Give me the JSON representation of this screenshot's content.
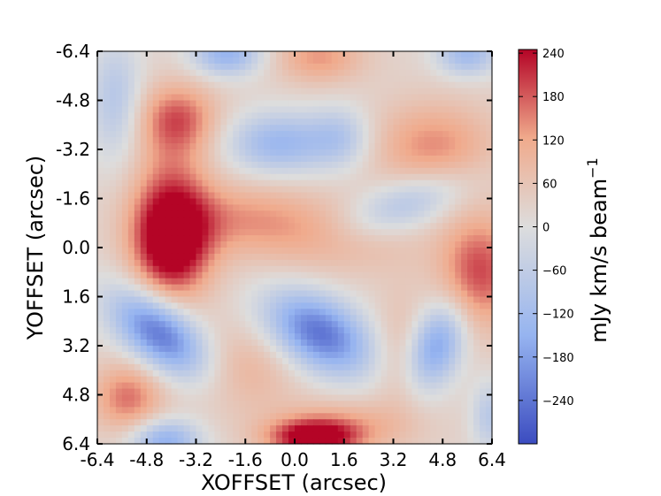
{
  "chart_data": {
    "type": "heatmap",
    "xlabel": "XOFFSET (arcsec)",
    "ylabel": "YOFFSET (arcsec)",
    "xlim": [
      -6.4,
      6.4
    ],
    "ylim": [
      -6.4,
      6.4
    ],
    "y_inverted": true,
    "x_ticks": [
      "-6.4",
      "-4.8",
      "-3.2",
      "-1.6",
      "0.0",
      "1.6",
      "3.2",
      "4.8",
      "6.4"
    ],
    "y_ticks": [
      "-6.4",
      "-4.8",
      "-3.2",
      "-1.6",
      "0.0",
      "1.6",
      "3.2",
      "4.8",
      "6.4"
    ],
    "colormap": "coolwarm",
    "colorbar": {
      "label": "mJy km/s beam",
      "label_exponent": "−1",
      "range": [
        -300,
        245
      ],
      "ticks": [
        "240",
        "180",
        "120",
        "60",
        "0",
        "−60",
        "−120",
        "−180",
        "−240"
      ],
      "tick_values": [
        240,
        180,
        120,
        60,
        0,
        -60,
        -120,
        -180,
        -240
      ]
    },
    "colors": {
      "low": "#3b4cc0",
      "mid": "#dddddd",
      "high": "#b40426"
    },
    "grid": false,
    "features": [
      {
        "x": -4.0,
        "y": 0.0,
        "value": 245,
        "sx": 0.9,
        "sy": 1.2
      },
      {
        "x": -3.8,
        "y": -4.2,
        "value": 150,
        "sx": 0.9,
        "sy": 0.8
      },
      {
        "x": -4.0,
        "y": -1.8,
        "value": 110,
        "sx": 0.9,
        "sy": 1.4
      },
      {
        "x": -1.6,
        "y": -1.0,
        "value": 95,
        "sx": 1.8,
        "sy": 0.8
      },
      {
        "x": 1.2,
        "y": -0.2,
        "value": 70,
        "sx": 2.0,
        "sy": 0.8
      },
      {
        "x": 6.0,
        "y": 0.8,
        "value": 170,
        "sx": 0.9,
        "sy": 1.3
      },
      {
        "x": 4.5,
        "y": -3.3,
        "value": 120,
        "sx": 1.4,
        "sy": 1.0
      },
      {
        "x": 0.8,
        "y": -6.2,
        "value": 110,
        "sx": 1.0,
        "sy": 0.6
      },
      {
        "x": 1.5,
        "y": 5.8,
        "value": 90,
        "sx": 1.6,
        "sy": 0.6
      },
      {
        "x": 0.6,
        "y": 6.2,
        "value": 230,
        "sx": 1.0,
        "sy": 0.4
      },
      {
        "x": -5.4,
        "y": 4.9,
        "value": 140,
        "sx": 0.8,
        "sy": 0.8
      },
      {
        "x": -1.6,
        "y": 4.0,
        "value": 70,
        "sx": 1.2,
        "sy": 1.0
      },
      {
        "x": 3.4,
        "y": 3.5,
        "value": 60,
        "sx": 0.6,
        "sy": 1.4
      },
      {
        "x": -4.4,
        "y": 2.8,
        "value": -270,
        "sx": 1.3,
        "sy": 0.7,
        "theta": 40
      },
      {
        "x": 0.8,
        "y": 2.8,
        "value": -270,
        "sx": 1.3,
        "sy": 0.8,
        "theta": 30
      },
      {
        "x": 4.6,
        "y": 3.2,
        "value": -200,
        "sx": 0.6,
        "sy": 1.0,
        "theta": 20
      },
      {
        "x": -5.8,
        "y": -4.8,
        "value": -110,
        "sx": 0.6,
        "sy": 1.4
      },
      {
        "x": -0.5,
        "y": -3.4,
        "value": -160,
        "sx": 1.2,
        "sy": 0.7
      },
      {
        "x": 1.5,
        "y": -3.6,
        "value": -100,
        "sx": 0.7,
        "sy": 0.7
      },
      {
        "x": 3.6,
        "y": -1.4,
        "value": -120,
        "sx": 1.5,
        "sy": 0.6,
        "theta": -20
      },
      {
        "x": -2.2,
        "y": -6.3,
        "value": -170,
        "sx": 0.8,
        "sy": 0.5
      },
      {
        "x": 5.6,
        "y": -6.3,
        "value": -150,
        "sx": 0.7,
        "sy": 0.5
      },
      {
        "x": -4.2,
        "y": 6.3,
        "value": -180,
        "sx": 0.8,
        "sy": 0.5
      },
      {
        "x": 6.3,
        "y": 5.5,
        "value": -100,
        "sx": 0.4,
        "sy": 0.8
      }
    ]
  }
}
